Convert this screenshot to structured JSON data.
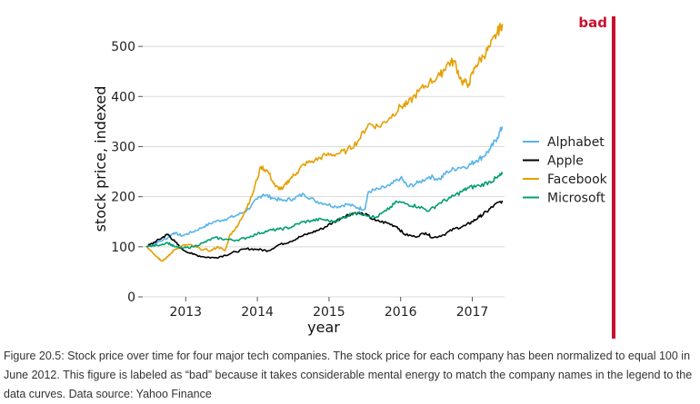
{
  "chart_data": {
    "type": "line",
    "title": "",
    "xlabel": "year",
    "ylabel": "stock price, indexed",
    "xlim": [
      2012.4,
      2017.45
    ],
    "ylim": [
      0,
      560
    ],
    "x_ticks": [
      2013,
      2014,
      2015,
      2016,
      2017
    ],
    "y_ticks": [
      0,
      100,
      200,
      300,
      400,
      500
    ],
    "grid": "horizontal",
    "legend_position": "right",
    "badge": "bad",
    "series": [
      {
        "name": "Alphabet",
        "color": "#56B4E9",
        "points": [
          [
            2012.45,
            100
          ],
          [
            2012.6,
            108
          ],
          [
            2012.75,
            118
          ],
          [
            2012.83,
            128
          ],
          [
            2012.95,
            122
          ],
          [
            2013.1,
            130
          ],
          [
            2013.25,
            140
          ],
          [
            2013.4,
            150
          ],
          [
            2013.55,
            155
          ],
          [
            2013.7,
            162
          ],
          [
            2013.85,
            172
          ],
          [
            2014.0,
            195
          ],
          [
            2014.08,
            205
          ],
          [
            2014.2,
            198
          ],
          [
            2014.35,
            192
          ],
          [
            2014.5,
            196
          ],
          [
            2014.65,
            205
          ],
          [
            2014.8,
            192
          ],
          [
            2014.95,
            186
          ],
          [
            2015.1,
            180
          ],
          [
            2015.25,
            185
          ],
          [
            2015.4,
            178
          ],
          [
            2015.5,
            175
          ],
          [
            2015.55,
            210
          ],
          [
            2015.7,
            215
          ],
          [
            2015.85,
            222
          ],
          [
            2016.0,
            238
          ],
          [
            2016.1,
            220
          ],
          [
            2016.25,
            228
          ],
          [
            2016.4,
            240
          ],
          [
            2016.55,
            235
          ],
          [
            2016.65,
            250
          ],
          [
            2016.8,
            258
          ],
          [
            2016.95,
            262
          ],
          [
            2017.05,
            272
          ],
          [
            2017.15,
            280
          ],
          [
            2017.25,
            295
          ],
          [
            2017.35,
            318
          ],
          [
            2017.42,
            340
          ]
        ]
      },
      {
        "name": "Apple",
        "color": "#000000",
        "points": [
          [
            2012.45,
            100
          ],
          [
            2012.55,
            108
          ],
          [
            2012.67,
            118
          ],
          [
            2012.75,
            125
          ],
          [
            2012.85,
            110
          ],
          [
            2012.95,
            95
          ],
          [
            2013.1,
            85
          ],
          [
            2013.25,
            80
          ],
          [
            2013.4,
            78
          ],
          [
            2013.55,
            83
          ],
          [
            2013.7,
            90
          ],
          [
            2013.85,
            96
          ],
          [
            2014.0,
            95
          ],
          [
            2014.15,
            92
          ],
          [
            2014.3,
            104
          ],
          [
            2014.45,
            110
          ],
          [
            2014.6,
            120
          ],
          [
            2014.75,
            128
          ],
          [
            2014.9,
            136
          ],
          [
            2015.05,
            148
          ],
          [
            2015.2,
            160
          ],
          [
            2015.35,
            168
          ],
          [
            2015.5,
            165
          ],
          [
            2015.65,
            152
          ],
          [
            2015.8,
            148
          ],
          [
            2015.95,
            140
          ],
          [
            2016.05,
            125
          ],
          [
            2016.2,
            120
          ],
          [
            2016.35,
            128
          ],
          [
            2016.45,
            118
          ],
          [
            2016.6,
            124
          ],
          [
            2016.75,
            136
          ],
          [
            2016.9,
            142
          ],
          [
            2017.0,
            150
          ],
          [
            2017.1,
            160
          ],
          [
            2017.2,
            170
          ],
          [
            2017.3,
            182
          ],
          [
            2017.42,
            192
          ]
        ]
      },
      {
        "name": "Facebook",
        "color": "#E69F00",
        "points": [
          [
            2012.45,
            100
          ],
          [
            2012.52,
            92
          ],
          [
            2012.6,
            80
          ],
          [
            2012.67,
            72
          ],
          [
            2012.75,
            80
          ],
          [
            2012.85,
            95
          ],
          [
            2012.95,
            102
          ],
          [
            2013.05,
            104
          ],
          [
            2013.2,
            96
          ],
          [
            2013.35,
            92
          ],
          [
            2013.45,
            100
          ],
          [
            2013.55,
            92
          ],
          [
            2013.62,
            125
          ],
          [
            2013.72,
            140
          ],
          [
            2013.82,
            170
          ],
          [
            2013.92,
            200
          ],
          [
            2014.05,
            260
          ],
          [
            2014.15,
            250
          ],
          [
            2014.25,
            220
          ],
          [
            2014.35,
            215
          ],
          [
            2014.45,
            235
          ],
          [
            2014.55,
            248
          ],
          [
            2014.65,
            265
          ],
          [
            2014.8,
            272
          ],
          [
            2014.95,
            283
          ],
          [
            2015.1,
            285
          ],
          [
            2015.25,
            292
          ],
          [
            2015.4,
            310
          ],
          [
            2015.55,
            345
          ],
          [
            2015.7,
            340
          ],
          [
            2015.85,
            358
          ],
          [
            2016.0,
            380
          ],
          [
            2016.1,
            385
          ],
          [
            2016.25,
            410
          ],
          [
            2016.4,
            428
          ],
          [
            2016.55,
            442
          ],
          [
            2016.65,
            465
          ],
          [
            2016.75,
            470
          ],
          [
            2016.85,
            430
          ],
          [
            2016.95,
            425
          ],
          [
            2017.05,
            462
          ],
          [
            2017.15,
            480
          ],
          [
            2017.25,
            500
          ],
          [
            2017.35,
            528
          ],
          [
            2017.42,
            545
          ]
        ]
      },
      {
        "name": "Microsoft",
        "color": "#009E73",
        "points": [
          [
            2012.45,
            100
          ],
          [
            2012.6,
            103
          ],
          [
            2012.75,
            108
          ],
          [
            2012.85,
            100
          ],
          [
            2012.95,
            97
          ],
          [
            2013.1,
            100
          ],
          [
            2013.25,
            108
          ],
          [
            2013.4,
            118
          ],
          [
            2013.55,
            115
          ],
          [
            2013.7,
            113
          ],
          [
            2013.85,
            118
          ],
          [
            2014.0,
            126
          ],
          [
            2014.15,
            132
          ],
          [
            2014.3,
            135
          ],
          [
            2014.45,
            138
          ],
          [
            2014.6,
            148
          ],
          [
            2014.75,
            152
          ],
          [
            2014.9,
            155
          ],
          [
            2015.05,
            150
          ],
          [
            2015.2,
            158
          ],
          [
            2015.35,
            168
          ],
          [
            2015.5,
            165
          ],
          [
            2015.65,
            158
          ],
          [
            2015.8,
            172
          ],
          [
            2015.95,
            190
          ],
          [
            2016.1,
            185
          ],
          [
            2016.25,
            180
          ],
          [
            2016.4,
            172
          ],
          [
            2016.55,
            188
          ],
          [
            2016.7,
            198
          ],
          [
            2016.85,
            210
          ],
          [
            2016.95,
            218
          ],
          [
            2017.1,
            222
          ],
          [
            2017.25,
            230
          ],
          [
            2017.35,
            238
          ],
          [
            2017.42,
            245
          ]
        ]
      }
    ]
  },
  "caption": "Figure 20.5: Stock price over time for four major tech companies. The stock price for each company has been normalized to equal 100 in June 2012. This figure is labeled as “bad” because it takes considerable mental energy to match the company names in the legend to the data curves. Data source: Yahoo Finance"
}
